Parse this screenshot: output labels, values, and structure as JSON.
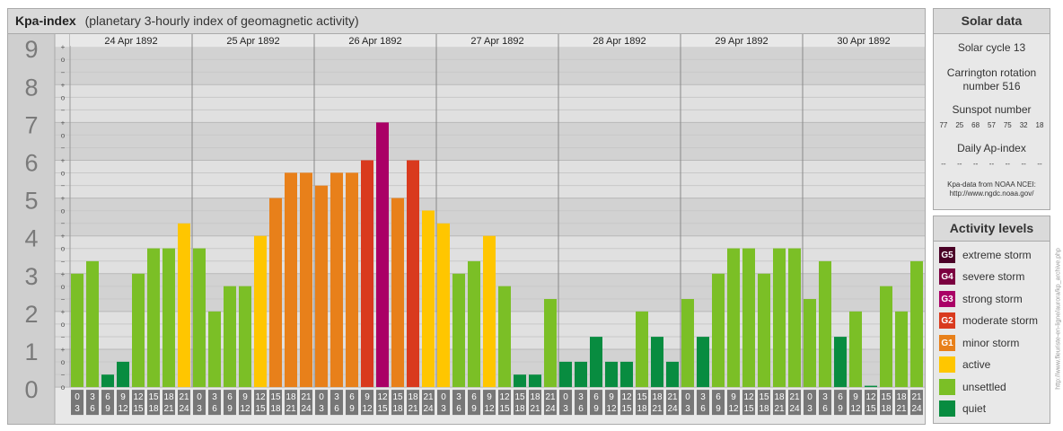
{
  "title": {
    "main": "Kpa-index",
    "sub": "(planetary 3-hourly index of geomagnetic activity)"
  },
  "solar": {
    "heading": "Solar data",
    "cycle": "Solar cycle 13",
    "carrington": "Carrington rotation number 516",
    "sunspot_label": "Sunspot number",
    "sunspot_values": [
      "77",
      "25",
      "68",
      "57",
      "75",
      "32",
      "18"
    ],
    "ap_label": "Daily Ap-index",
    "ap_values": [
      "--",
      "--",
      "--",
      "--",
      "--",
      "--",
      "--"
    ],
    "source_line1": "Kpa-data from NOAA NCEI:",
    "source_line2": "http://www.ngdc.noaa.gov/"
  },
  "levels": {
    "heading": "Activity levels",
    "items": [
      {
        "code": "G5",
        "label": "extreme storm",
        "color": "#4a0026"
      },
      {
        "code": "G4",
        "label": "severe storm",
        "color": "#7b0040"
      },
      {
        "code": "G3",
        "label": "strong storm",
        "color": "#aa0066"
      },
      {
        "code": "G2",
        "label": "moderate storm",
        "color": "#d93a1e"
      },
      {
        "code": "G1",
        "label": "minor storm",
        "color": "#e8801a"
      },
      {
        "code": "",
        "label": "active",
        "color": "#ffc600"
      },
      {
        "code": "",
        "label": "unsettled",
        "color": "#7bbf26"
      },
      {
        "code": "",
        "label": "quiet",
        "color": "#088c40"
      }
    ]
  },
  "watermark": "http://www.fleuriste-en-ligne/aurora/kp_archive.php",
  "chart_data": {
    "type": "bar",
    "title": "Kpa-index",
    "subtitle": "(planetary 3-hourly index of geomagnetic activity)",
    "ylim": [
      0,
      9
    ],
    "y_ticks": [
      "0",
      "1",
      "2",
      "3",
      "4",
      "5",
      "6",
      "7",
      "8",
      "9"
    ],
    "sub_ticks": [
      "+",
      "−",
      "o"
    ],
    "days": [
      "24 Apr 1892",
      "25 Apr 1892",
      "26 Apr 1892",
      "27 Apr 1892",
      "28 Apr 1892",
      "29 Apr 1892",
      "30 Apr 1892"
    ],
    "interval_labels": [
      [
        "0",
        "3"
      ],
      [
        "3",
        "6"
      ],
      [
        "6",
        "9"
      ],
      [
        "9",
        "12"
      ],
      [
        "12",
        "15"
      ],
      [
        "15",
        "18"
      ],
      [
        "18",
        "21"
      ],
      [
        "21",
        "24"
      ]
    ],
    "values": [
      3.0,
      3.33,
      0.33,
      0.67,
      3.0,
      3.67,
      3.67,
      4.33,
      3.67,
      2.0,
      2.67,
      2.67,
      4.0,
      5.0,
      5.67,
      5.67,
      5.33,
      5.67,
      5.67,
      6.0,
      7.0,
      5.0,
      6.0,
      4.67,
      4.33,
      3.0,
      3.33,
      4.0,
      2.67,
      0.33,
      0.33,
      2.33,
      0.67,
      0.67,
      1.33,
      0.67,
      0.67,
      2.0,
      1.33,
      0.67,
      2.33,
      1.33,
      3.0,
      3.67,
      3.67,
      3.0,
      3.67,
      3.67,
      2.33,
      3.33,
      1.33,
      2.0,
      0.0,
      2.67,
      2.0,
      3.33
    ],
    "grid": true,
    "colors": {
      "quiet": "#088c40",
      "unsettled": "#7bbf26",
      "active": "#ffc600",
      "G1": "#e8801a",
      "G2": "#d93a1e",
      "G3": "#aa0066"
    }
  }
}
